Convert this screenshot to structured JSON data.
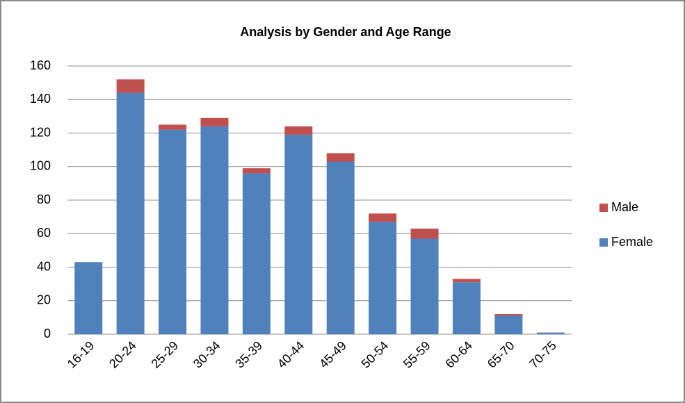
{
  "chart_data": {
    "type": "stacked-bar",
    "title": "Analysis by Gender and Age Range",
    "categories": [
      "16-19",
      "20-24",
      "25-29",
      "30-34",
      "35-39",
      "40-44",
      "45-49",
      "50-54",
      "55-59",
      "60-64",
      "65-70",
      "70-75"
    ],
    "series": [
      {
        "name": "Female",
        "color": "#4f81bd",
        "values": [
          43,
          144,
          122,
          124,
          96,
          119,
          103,
          67,
          57,
          31,
          11,
          1
        ]
      },
      {
        "name": "Male",
        "color": "#c0504d",
        "values": [
          0,
          8,
          3,
          5,
          3,
          5,
          5,
          5,
          6,
          2,
          1,
          0
        ]
      }
    ],
    "ylim": [
      0,
      160
    ],
    "yticks": [
      0,
      20,
      40,
      60,
      80,
      100,
      120,
      140,
      160
    ],
    "grid": true,
    "legend": "right"
  }
}
